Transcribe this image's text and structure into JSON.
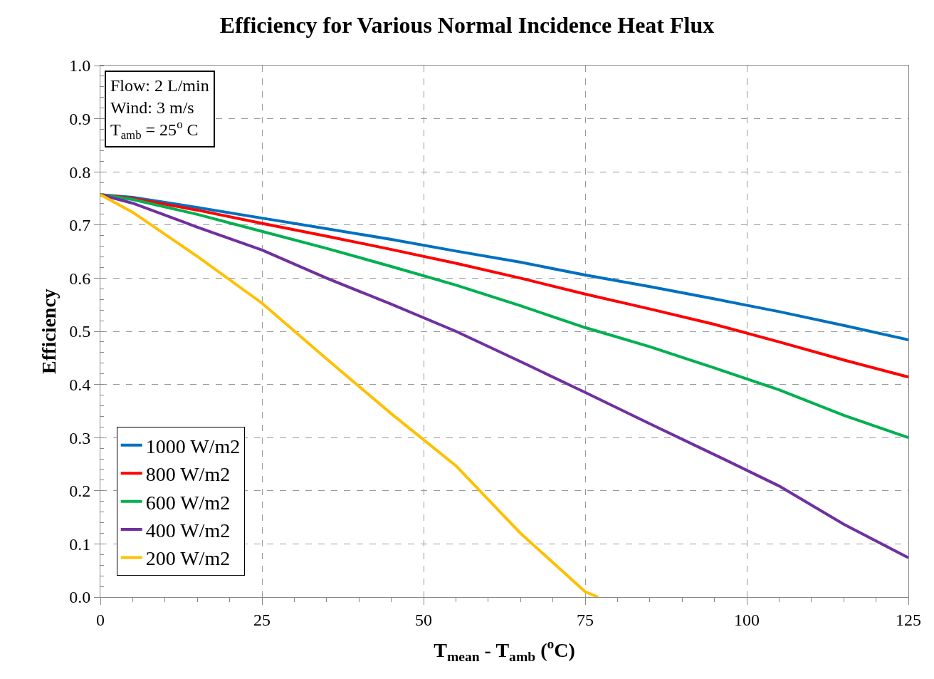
{
  "chart_data": {
    "type": "line",
    "title": "Efficiency for Various Normal Incidence Heat Flux",
    "xlabel": "T$_{mean}$ - T$_{amb}$ ($^{o}$C)",
    "ylabel": "Efficiency",
    "annotations": [
      "Flow: 2 L/min\nWind: 3 m/s\nT$_{amb}$ = 25$^{o}$ C"
    ],
    "x": [
      0,
      5,
      15,
      25,
      35,
      45,
      55,
      65,
      75,
      85,
      95,
      105,
      115,
      125
    ],
    "series": [
      {
        "name": "1000 W/m2",
        "color": "#0070c0",
        "values": [
          0.757,
          0.752,
          0.733,
          0.713,
          0.693,
          0.673,
          0.651,
          0.63,
          0.606,
          0.584,
          0.561,
          0.537,
          0.511,
          0.484
        ]
      },
      {
        "name": "800 W/m2",
        "color": "#ff0000",
        "values": [
          0.757,
          0.75,
          0.728,
          0.703,
          0.679,
          0.654,
          0.628,
          0.6,
          0.57,
          0.542,
          0.513,
          0.48,
          0.446,
          0.414
        ]
      },
      {
        "name": "600 W/m2",
        "color": "#00b050",
        "values": [
          0.757,
          0.748,
          0.72,
          0.688,
          0.656,
          0.622,
          0.587,
          0.548,
          0.507,
          0.471,
          0.431,
          0.39,
          0.342,
          0.3
        ]
      },
      {
        "name": "400 W/m2",
        "color": "#7030a0",
        "values": [
          0.757,
          0.741,
          0.696,
          0.653,
          0.6,
          0.551,
          0.5,
          0.443,
          0.385,
          0.326,
          0.268,
          0.209,
          0.137,
          0.074
        ]
      },
      {
        "name": "200 W/m2",
        "color": "#ffc000",
        "x": [
          0,
          5,
          15,
          25,
          35,
          45,
          55,
          65,
          75,
          77
        ],
        "values": [
          0.757,
          0.724,
          0.641,
          0.553,
          0.448,
          0.345,
          0.247,
          0.12,
          0.01,
          0
        ]
      }
    ],
    "xlim": [
      0,
      125
    ],
    "xticks": [
      0,
      25,
      50,
      75,
      100,
      125
    ],
    "ylim": [
      0,
      1
    ],
    "yticks": [
      {
        "value": 0,
        "label": "0.0"
      },
      {
        "value": 0.1,
        "label": "0.1"
      },
      {
        "value": 0.2,
        "label": "0.2"
      },
      {
        "value": 0.3,
        "label": "0.3"
      },
      {
        "value": 0.4,
        "label": "0.4"
      },
      {
        "value": 0.5,
        "label": "0.5"
      },
      {
        "value": 0.6,
        "label": "0.6"
      },
      {
        "value": 0.7,
        "label": "0.7"
      },
      {
        "value": 0.8,
        "label": "0.8"
      },
      {
        "value": 0.9,
        "label": "0.9"
      },
      {
        "value": 1,
        "label": "1.0"
      }
    ],
    "grid": true,
    "legend": "bottom left",
    "marker": "none",
    "line_style": "solid"
  }
}
